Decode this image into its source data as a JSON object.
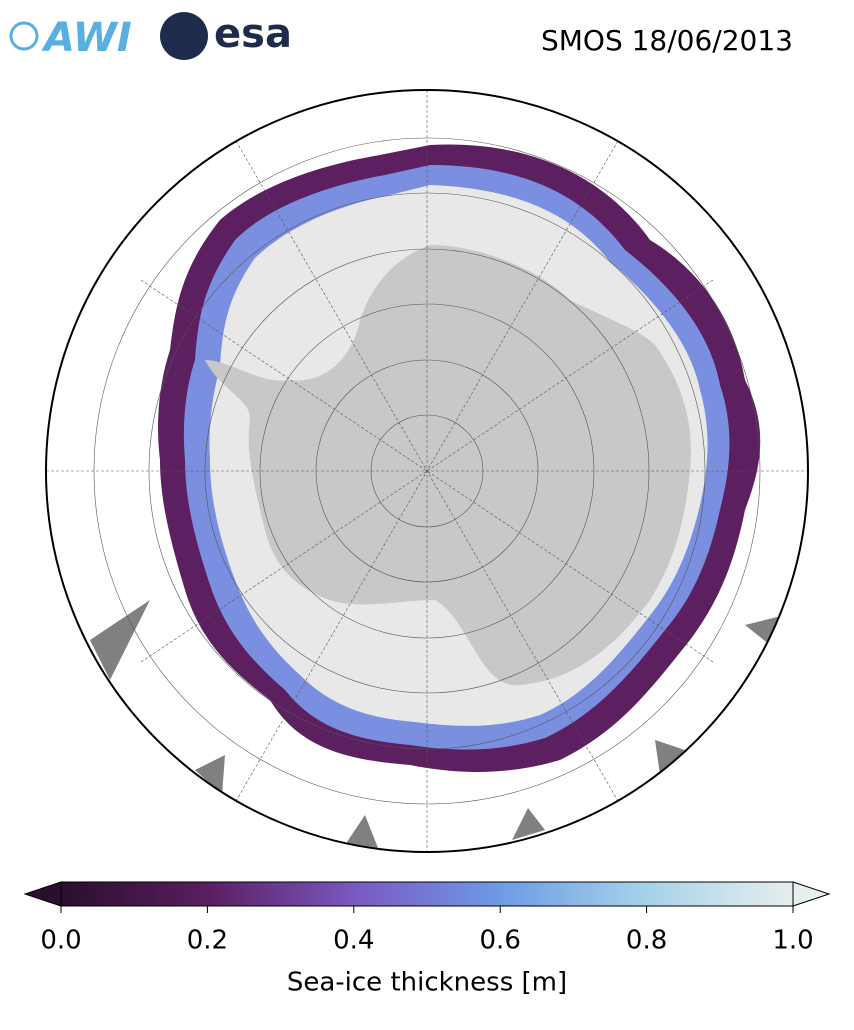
{
  "header": {
    "logos": [
      "AWI",
      "esa"
    ],
    "title": "SMOS 18/06/2013"
  },
  "colorbar": {
    "label": "Sea-ice thickness [m]",
    "lim": [
      0,
      1
    ],
    "ticks": [
      {
        "value": 0,
        "label": "0.0"
      },
      {
        "value": 0.2,
        "label": "0.2"
      },
      {
        "value": 0.4,
        "label": "0.4"
      },
      {
        "value": 0.6,
        "label": "0.6"
      },
      {
        "value": 0.8,
        "label": "0.8"
      },
      {
        "value": 1,
        "label": "1.0"
      }
    ],
    "colors": [
      "#2a0f2e",
      "#5a1e5f",
      "#7a58c2",
      "#6d9be6",
      "#a6d3e8",
      "#e6eeee"
    ]
  }
}
